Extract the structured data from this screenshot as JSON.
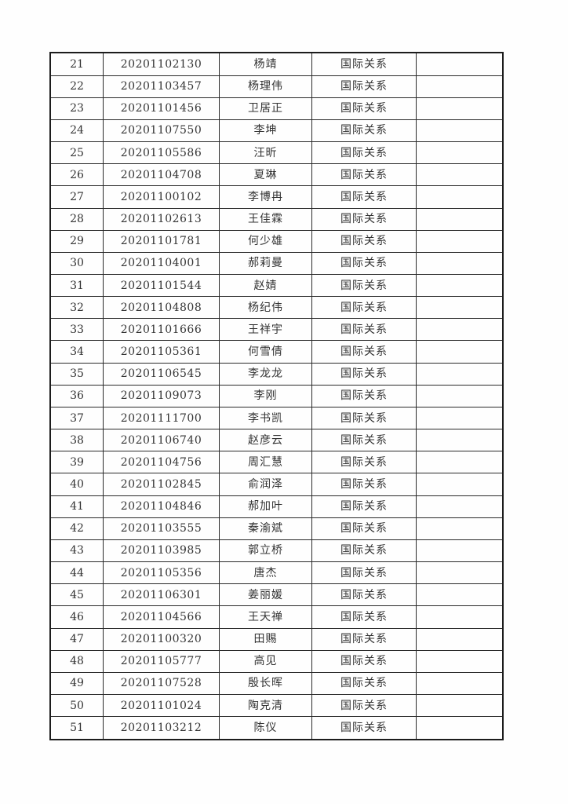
{
  "table": {
    "columns": [
      {
        "key": "no",
        "name": "row-number-cell"
      },
      {
        "key": "student_id",
        "name": "student-id-cell"
      },
      {
        "key": "name",
        "name": "student-name-cell"
      },
      {
        "key": "department",
        "name": "department-cell"
      },
      {
        "key": "note",
        "name": "empty-note-cell"
      }
    ],
    "rows": [
      {
        "no": "21",
        "student_id": "20201102130",
        "name": "杨靖",
        "department": "国际关系",
        "note": ""
      },
      {
        "no": "22",
        "student_id": "20201103457",
        "name": "杨理伟",
        "department": "国际关系",
        "note": ""
      },
      {
        "no": "23",
        "student_id": "20201101456",
        "name": "卫居正",
        "department": "国际关系",
        "note": ""
      },
      {
        "no": "24",
        "student_id": "20201107550",
        "name": "李坤",
        "department": "国际关系",
        "note": ""
      },
      {
        "no": "25",
        "student_id": "20201105586",
        "name": "汪昕",
        "department": "国际关系",
        "note": ""
      },
      {
        "no": "26",
        "student_id": "20201104708",
        "name": "夏琳",
        "department": "国际关系",
        "note": ""
      },
      {
        "no": "27",
        "student_id": "20201100102",
        "name": "李博冉",
        "department": "国际关系",
        "note": ""
      },
      {
        "no": "28",
        "student_id": "20201102613",
        "name": "王佳霖",
        "department": "国际关系",
        "note": ""
      },
      {
        "no": "29",
        "student_id": "20201101781",
        "name": "何少雄",
        "department": "国际关系",
        "note": ""
      },
      {
        "no": "30",
        "student_id": "20201104001",
        "name": "郝莉曼",
        "department": "国际关系",
        "note": ""
      },
      {
        "no": "31",
        "student_id": "20201101544",
        "name": "赵婧",
        "department": "国际关系",
        "note": ""
      },
      {
        "no": "32",
        "student_id": "20201104808",
        "name": "杨纪伟",
        "department": "国际关系",
        "note": ""
      },
      {
        "no": "33",
        "student_id": "20201101666",
        "name": "王祥宇",
        "department": "国际关系",
        "note": ""
      },
      {
        "no": "34",
        "student_id": "20201105361",
        "name": "何雪倩",
        "department": "国际关系",
        "note": ""
      },
      {
        "no": "35",
        "student_id": "20201106545",
        "name": "李龙龙",
        "department": "国际关系",
        "note": ""
      },
      {
        "no": "36",
        "student_id": "20201109073",
        "name": "李刚",
        "department": "国际关系",
        "note": ""
      },
      {
        "no": "37",
        "student_id": "20201111700",
        "name": "李书凯",
        "department": "国际关系",
        "note": ""
      },
      {
        "no": "38",
        "student_id": "20201106740",
        "name": "赵彦云",
        "department": "国际关系",
        "note": ""
      },
      {
        "no": "39",
        "student_id": "20201104756",
        "name": "周汇慧",
        "department": "国际关系",
        "note": ""
      },
      {
        "no": "40",
        "student_id": "20201102845",
        "name": "俞润泽",
        "department": "国际关系",
        "note": ""
      },
      {
        "no": "41",
        "student_id": "20201104846",
        "name": "郝加叶",
        "department": "国际关系",
        "note": ""
      },
      {
        "no": "42",
        "student_id": "20201103555",
        "name": "秦渝斌",
        "department": "国际关系",
        "note": ""
      },
      {
        "no": "43",
        "student_id": "20201103985",
        "name": "郭立桥",
        "department": "国际关系",
        "note": ""
      },
      {
        "no": "44",
        "student_id": "20201105356",
        "name": "唐杰",
        "department": "国际关系",
        "note": ""
      },
      {
        "no": "45",
        "student_id": "20201106301",
        "name": "姜丽媛",
        "department": "国际关系",
        "note": ""
      },
      {
        "no": "46",
        "student_id": "20201104566",
        "name": "王天禅",
        "department": "国际关系",
        "note": ""
      },
      {
        "no": "47",
        "student_id": "20201100320",
        "name": "田赐",
        "department": "国际关系",
        "note": ""
      },
      {
        "no": "48",
        "student_id": "20201105777",
        "name": "高见",
        "department": "国际关系",
        "note": ""
      },
      {
        "no": "49",
        "student_id": "20201107528",
        "name": "殷长晖",
        "department": "国际关系",
        "note": ""
      },
      {
        "no": "50",
        "student_id": "20201101024",
        "name": "陶克清",
        "department": "国际关系",
        "note": ""
      },
      {
        "no": "51",
        "student_id": "20201103212",
        "name": "陈仪",
        "department": "国际关系",
        "note": ""
      }
    ]
  },
  "colors": {
    "page_background": "#fefefe",
    "table_border": "#1c1c1c",
    "cell_border": "#2a2a2a",
    "text": "#333333"
  }
}
